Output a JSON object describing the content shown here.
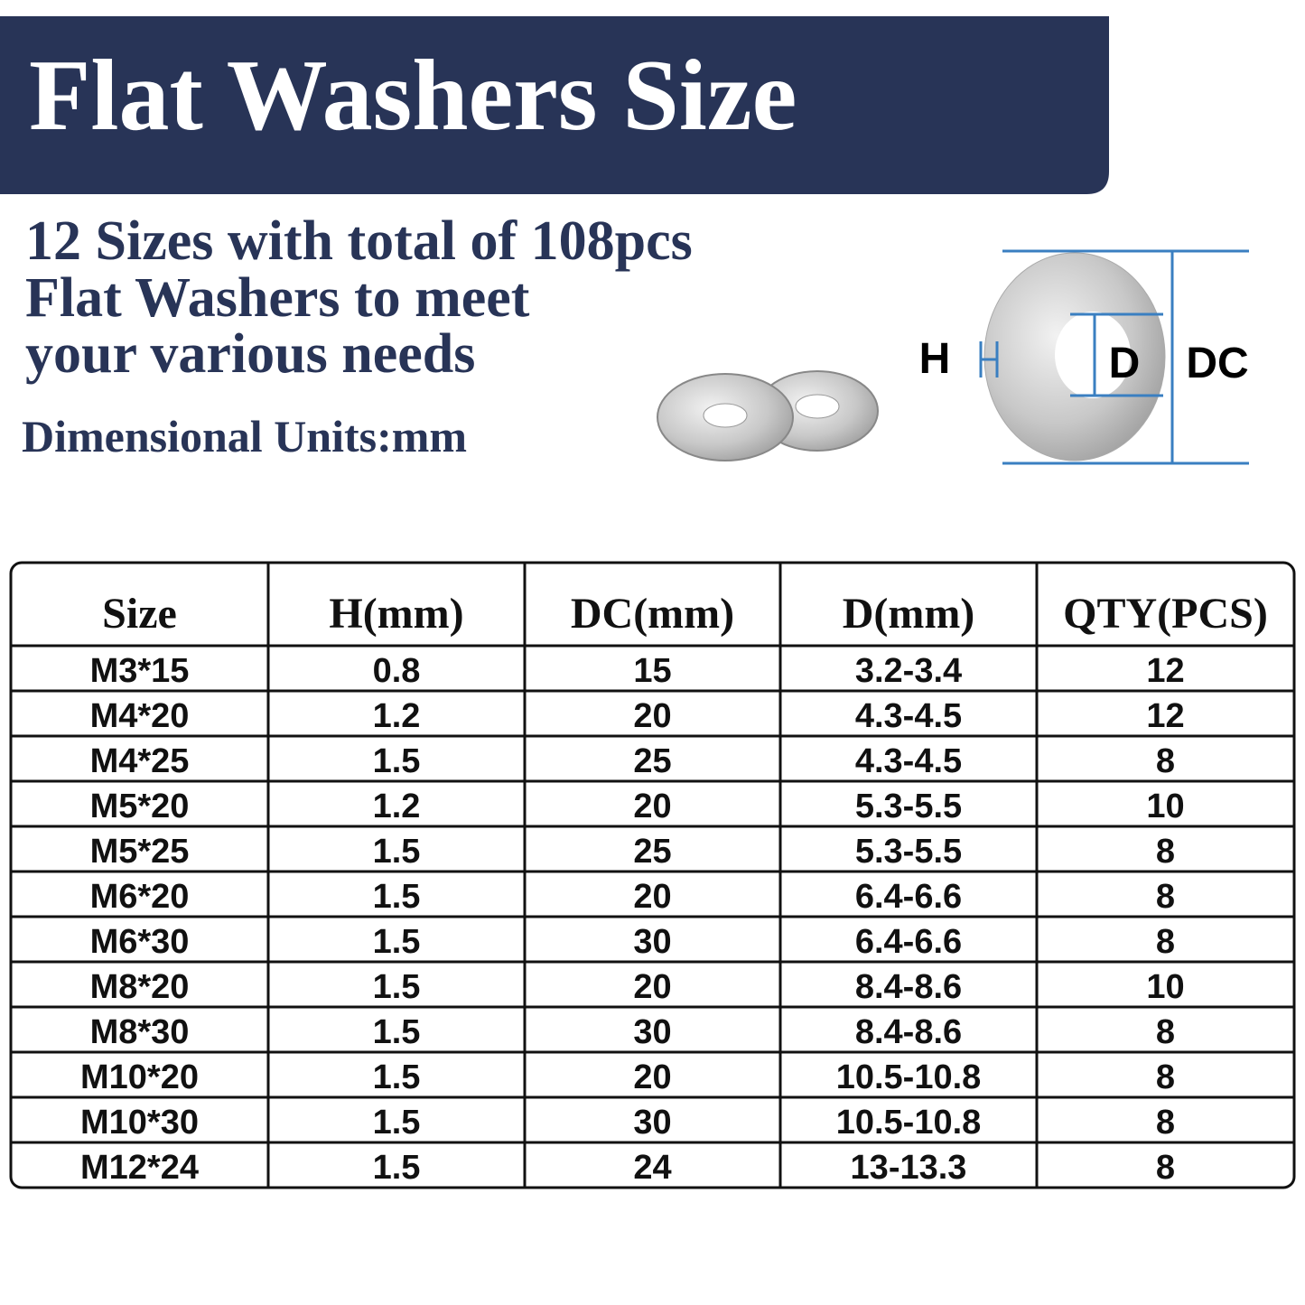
{
  "header": {
    "title": "Flat Washers Size"
  },
  "intro": {
    "lines": [
      "12 Sizes with total of 108pcs",
      "Flat Washers to meet",
      "your various needs"
    ],
    "units": "Dimensional Units:mm"
  },
  "diagram": {
    "labels": [
      "H",
      "D",
      "DC"
    ]
  },
  "table": {
    "columns": [
      "Size",
      "H(mm)",
      "DC(mm)",
      "D(mm)",
      "QTY(PCS)"
    ],
    "rows": [
      [
        "M3*15",
        "0.8",
        "15",
        "3.2-3.4",
        "12"
      ],
      [
        "M4*20",
        "1.2",
        "20",
        "4.3-4.5",
        "12"
      ],
      [
        "M4*25",
        "1.5",
        "25",
        "4.3-4.5",
        "8"
      ],
      [
        "M5*20",
        "1.2",
        "20",
        "5.3-5.5",
        "10"
      ],
      [
        "M5*25",
        "1.5",
        "25",
        "5.3-5.5",
        "8"
      ],
      [
        "M6*20",
        "1.5",
        "20",
        "6.4-6.6",
        "8"
      ],
      [
        "M6*30",
        "1.5",
        "30",
        "6.4-6.6",
        "8"
      ],
      [
        "M8*20",
        "1.5",
        "20",
        "8.4-8.6",
        "10"
      ],
      [
        "M8*30",
        "1.5",
        "30",
        "8.4-8.6",
        "8"
      ],
      [
        "M10*20",
        "1.5",
        "20",
        "10.5-10.8",
        "8"
      ],
      [
        "M10*30",
        "1.5",
        "30",
        "10.5-10.8",
        "8"
      ],
      [
        "M12*24",
        "1.5",
        "24",
        "13-13.3",
        "8"
      ]
    ]
  }
}
